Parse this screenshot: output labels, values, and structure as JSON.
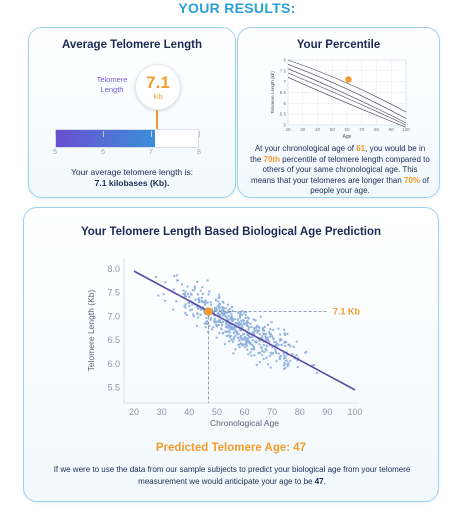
{
  "page_title": "YOUR RESULTS:",
  "average_card": {
    "title": "Average Telomere Length",
    "label_line1": "Telomere",
    "label_line2": "Length",
    "value": "7.1",
    "unit": "Kb",
    "bar_fill_fraction": 0.7,
    "bar_ticks": [
      "5",
      "6",
      "7",
      "8"
    ],
    "summary_line1": "Your average telomere length is:",
    "summary_line2": "7.1 kilobases (Kb)."
  },
  "percentile_card": {
    "title": "Your Percentile",
    "text_1": "At your chronological age of ",
    "age": "61",
    "text_2": ", you would be in the ",
    "percentile": "70th",
    "text_3": " percentile of telomere length compared to others of your same chronological age. This means that your telomeres are longer than ",
    "percent": "70%",
    "text_4": " of people your age."
  },
  "prediction_card": {
    "title": "Your Telomere Length Based Biological Age Prediction",
    "marker_label": "7.1 Kb",
    "predicted_age_label": "Predicted Telomere Age: 47",
    "description_1": "If we were to use the data from our sample subjects to predict your biological age from your telomere measurement we would anticipate your age to be ",
    "description_age": "47",
    "description_2": "."
  },
  "colors": {
    "accent_orange": "#f39c2b",
    "title_blue": "#2aa0d8",
    "navy": "#1b2a55",
    "purple": "#6a4fd2",
    "scatter_blue": "#8fb0de",
    "regression_line": "#5a4aa8"
  },
  "chart_data": [
    {
      "type": "line",
      "title": "",
      "xlabel": "Age",
      "ylabel": "Telomere Length (kb)",
      "x_ticks": [
        20,
        30,
        40,
        50,
        60,
        70,
        80,
        90,
        100
      ],
      "y_ticks": [
        5,
        5.5,
        6,
        6.5,
        7,
        7.5,
        8
      ],
      "x_range": [
        20,
        100
      ],
      "y_range": [
        5,
        8
      ],
      "grid": true,
      "series": [
        {
          "x": [
            20,
            60,
            100
          ],
          "y": [
            8.0,
            6.8,
            5.6
          ]
        },
        {
          "x": [
            20,
            60,
            100
          ],
          "y": [
            7.8,
            6.5,
            5.3
          ]
        },
        {
          "x": [
            20,
            60,
            100
          ],
          "y": [
            7.6,
            6.2,
            5.1
          ]
        },
        {
          "x": [
            20,
            60,
            100
          ],
          "y": [
            7.4,
            6.0,
            5.0
          ]
        },
        {
          "x": [
            20,
            60,
            100
          ],
          "y": [
            7.2,
            5.7,
            4.9
          ]
        }
      ],
      "highlight_point": {
        "x": 61,
        "y": 7.1
      }
    },
    {
      "type": "scatter",
      "title": "",
      "xlabel": "Chronological Age",
      "ylabel": "Telomere Length (Kb)",
      "x_ticks": [
        20,
        30,
        40,
        50,
        60,
        70,
        80,
        90,
        100
      ],
      "y_ticks": [
        5.5,
        6.0,
        6.5,
        7.0,
        7.5,
        8.0
      ],
      "x_range": [
        20,
        100
      ],
      "y_range": [
        5.3,
        8.1
      ],
      "grid": false,
      "regression": {
        "x": [
          20,
          100
        ],
        "y": [
          7.95,
          5.45
        ]
      },
      "n_points": 520,
      "marker": {
        "x": 47,
        "y": 7.1,
        "label": "7.1 Kb"
      }
    }
  ]
}
